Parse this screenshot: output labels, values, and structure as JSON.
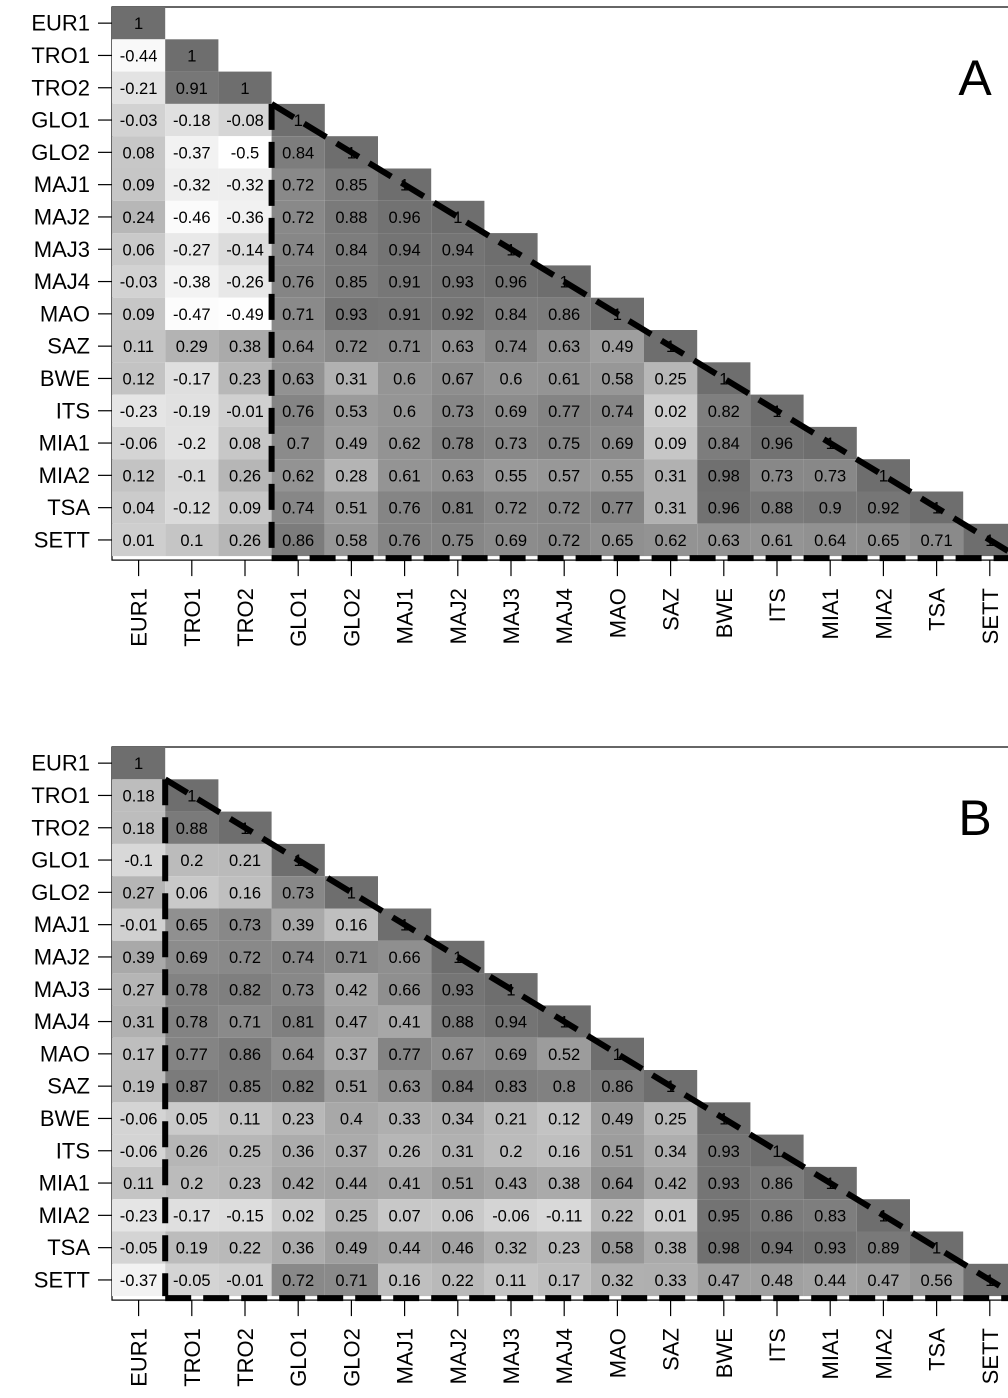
{
  "chart_data": [
    {
      "type": "heatmap",
      "panel_label": "A",
      "variables": [
        "EUR1",
        "TRO1",
        "TRO2",
        "GLO1",
        "GLO2",
        "MAJ1",
        "MAJ2",
        "MAJ3",
        "MAJ4",
        "MAO",
        "SAZ",
        "BWE",
        "ITS",
        "MIA1",
        "MIA2",
        "TSA",
        "SETT"
      ],
      "lower_triangle": [
        [
          "1"
        ],
        [
          "-0.44",
          "1"
        ],
        [
          "-0.21",
          "0.91",
          "1"
        ],
        [
          "-0.03",
          "-0.18",
          "-0.08",
          "1"
        ],
        [
          "0.08",
          "-0.37",
          "-0.5",
          "0.84",
          "1"
        ],
        [
          "0.09",
          "-0.32",
          "-0.32",
          "0.72",
          "0.85",
          "1"
        ],
        [
          "0.24",
          "-0.46",
          "-0.36",
          "0.72",
          "0.88",
          "0.96",
          "1"
        ],
        [
          "0.06",
          "-0.27",
          "-0.14",
          "0.74",
          "0.84",
          "0.94",
          "0.94",
          "1"
        ],
        [
          "-0.03",
          "-0.38",
          "-0.26",
          "0.76",
          "0.85",
          "0.91",
          "0.93",
          "0.96",
          "1"
        ],
        [
          "0.09",
          "-0.47",
          "-0.49",
          "0.71",
          "0.93",
          "0.91",
          "0.92",
          "0.84",
          "0.86",
          "1"
        ],
        [
          "0.11",
          "0.29",
          "0.38",
          "0.64",
          "0.72",
          "0.71",
          "0.63",
          "0.74",
          "0.63",
          "0.49",
          "1"
        ],
        [
          "0.12",
          "-0.17",
          "0.23",
          "0.63",
          "0.31",
          "0.6",
          "0.67",
          "0.6",
          "0.61",
          "0.58",
          "0.25",
          "1"
        ],
        [
          "-0.23",
          "-0.19",
          "-0.01",
          "0.76",
          "0.53",
          "0.6",
          "0.73",
          "0.69",
          "0.77",
          "0.74",
          "0.02",
          "0.82",
          "1"
        ],
        [
          "-0.06",
          "-0.2",
          "0.08",
          "0.7",
          "0.49",
          "0.62",
          "0.78",
          "0.73",
          "0.75",
          "0.69",
          "0.09",
          "0.84",
          "0.96",
          "1"
        ],
        [
          "0.12",
          "-0.1",
          "0.26",
          "0.62",
          "0.28",
          "0.61",
          "0.63",
          "0.55",
          "0.57",
          "0.55",
          "0.31",
          "0.98",
          "0.73",
          "0.73",
          "1"
        ],
        [
          "0.04",
          "-0.12",
          "0.09",
          "0.74",
          "0.51",
          "0.76",
          "0.81",
          "0.72",
          "0.72",
          "0.77",
          "0.31",
          "0.96",
          "0.88",
          "0.9",
          "0.92",
          "1"
        ],
        [
          "0.01",
          "0.1",
          "0.26",
          "0.86",
          "0.58",
          "0.76",
          "0.75",
          "0.69",
          "0.72",
          "0.65",
          "0.62",
          "0.63",
          "0.61",
          "0.64",
          "0.65",
          "0.71",
          "1"
        ]
      ],
      "highlight_block_start": 3,
      "color_scale": {
        "low": "#ffffff",
        "high": "#6e6e6e",
        "diagonal": "#6e6e6e"
      }
    },
    {
      "type": "heatmap",
      "panel_label": "B",
      "variables": [
        "EUR1",
        "TRO1",
        "TRO2",
        "GLO1",
        "GLO2",
        "MAJ1",
        "MAJ2",
        "MAJ3",
        "MAJ4",
        "MAO",
        "SAZ",
        "BWE",
        "ITS",
        "MIA1",
        "MIA2",
        "TSA",
        "SETT"
      ],
      "lower_triangle": [
        [
          "1"
        ],
        [
          "0.18",
          "1"
        ],
        [
          "0.18",
          "0.88",
          "1"
        ],
        [
          "-0.1",
          "0.2",
          "0.21",
          "1"
        ],
        [
          "0.27",
          "0.06",
          "0.16",
          "0.73",
          "1"
        ],
        [
          "-0.01",
          "0.65",
          "0.73",
          "0.39",
          "0.16",
          "1"
        ],
        [
          "0.39",
          "0.69",
          "0.72",
          "0.74",
          "0.71",
          "0.66",
          "1"
        ],
        [
          "0.27",
          "0.78",
          "0.82",
          "0.73",
          "0.42",
          "0.66",
          "0.93",
          "1"
        ],
        [
          "0.31",
          "0.78",
          "0.71",
          "0.81",
          "0.47",
          "0.41",
          "0.88",
          "0.94",
          "1"
        ],
        [
          "0.17",
          "0.77",
          "0.86",
          "0.64",
          "0.37",
          "0.77",
          "0.67",
          "0.69",
          "0.52",
          "1"
        ],
        [
          "0.19",
          "0.87",
          "0.85",
          "0.82",
          "0.51",
          "0.63",
          "0.84",
          "0.83",
          "0.8",
          "0.86",
          "1"
        ],
        [
          "-0.06",
          "0.05",
          "0.11",
          "0.23",
          "0.4",
          "0.33",
          "0.34",
          "0.21",
          "0.12",
          "0.49",
          "0.25",
          "1"
        ],
        [
          "-0.06",
          "0.26",
          "0.25",
          "0.36",
          "0.37",
          "0.26",
          "0.31",
          "0.2",
          "0.16",
          "0.51",
          "0.34",
          "0.93",
          "1"
        ],
        [
          "0.11",
          "0.2",
          "0.23",
          "0.42",
          "0.44",
          "0.41",
          "0.51",
          "0.43",
          "0.38",
          "0.64",
          "0.42",
          "0.93",
          "0.86",
          "1"
        ],
        [
          "-0.23",
          "-0.17",
          "-0.15",
          "0.02",
          "0.25",
          "0.07",
          "0.06",
          "-0.06",
          "-0.11",
          "0.22",
          "0.01",
          "0.95",
          "0.86",
          "0.83",
          "1"
        ],
        [
          "-0.05",
          "0.19",
          "0.22",
          "0.36",
          "0.49",
          "0.44",
          "0.46",
          "0.32",
          "0.23",
          "0.58",
          "0.38",
          "0.98",
          "0.94",
          "0.93",
          "0.89",
          "1"
        ],
        [
          "-0.37",
          "-0.05",
          "-0.01",
          "0.72",
          "0.71",
          "0.16",
          "0.22",
          "0.11",
          "0.17",
          "0.32",
          "0.33",
          "0.47",
          "0.48",
          "0.44",
          "0.47",
          "0.56",
          "1"
        ]
      ],
      "highlight_block_start": 1,
      "color_scale": {
        "low": "#ffffff",
        "high": "#6e6e6e",
        "diagonal": "#6e6e6e"
      }
    }
  ]
}
